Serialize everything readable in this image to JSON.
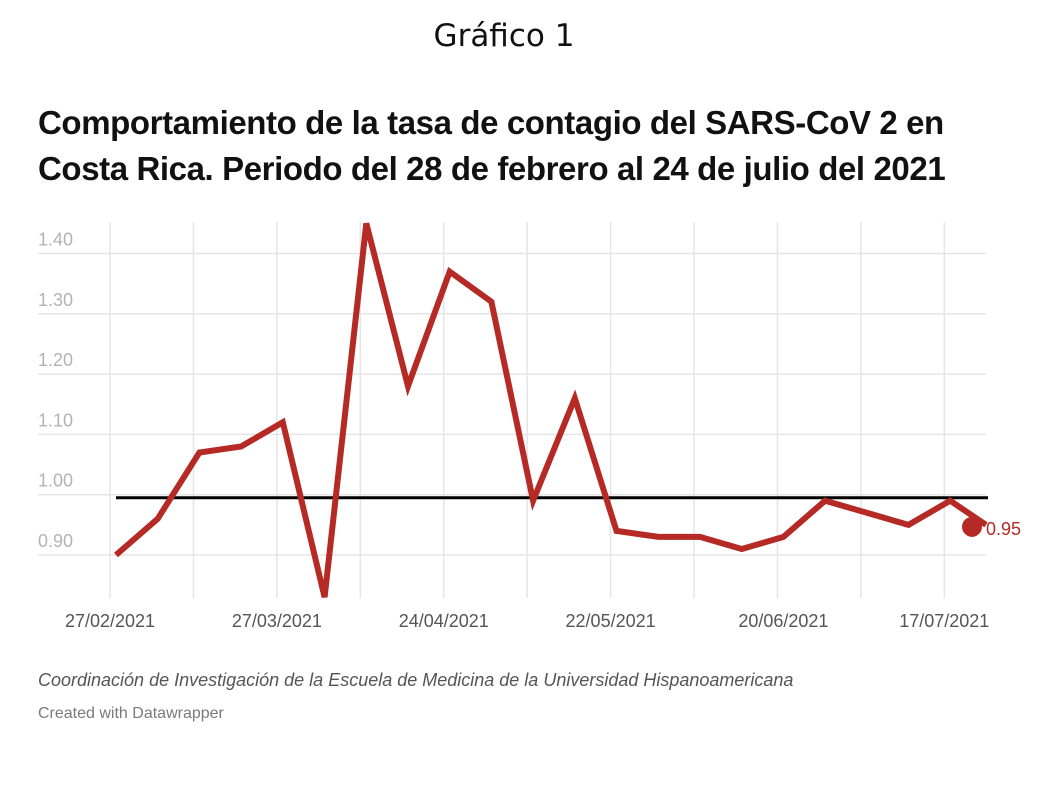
{
  "figure_label": "Gráfico 1",
  "source_note": "Coordinación de Investigación de la Escuela de Medicina de la Universidad Hispanoamericana",
  "credit": "Created with Datawrapper",
  "colors": {
    "series": "#b52a25",
    "reference_line": "#000000",
    "grid": "#e5e5e5",
    "y_tick_text": "#b3b3b3",
    "x_tick_text": "#555555"
  },
  "chart_data": {
    "type": "line",
    "title": "Comportamiento de la tasa de contagio del SARS-CoV 2 en Costa Rica. Periodo del 28 de febrero al 24 de julio del 2021",
    "xlabel": "",
    "ylabel": "",
    "x": [
      "2021-02-28",
      "2021-03-07",
      "2021-03-14",
      "2021-03-21",
      "2021-03-28",
      "2021-04-04",
      "2021-04-11",
      "2021-04-18",
      "2021-04-25",
      "2021-05-02",
      "2021-05-09",
      "2021-05-16",
      "2021-05-23",
      "2021-05-30",
      "2021-06-06",
      "2021-06-13",
      "2021-06-20",
      "2021-06-27",
      "2021-07-04",
      "2021-07-11",
      "2021-07-18",
      "2021-07-24"
    ],
    "series": [
      {
        "values": [
          0.9,
          0.96,
          1.07,
          1.08,
          1.12,
          0.83,
          1.45,
          1.18,
          1.37,
          1.32,
          0.99,
          1.16,
          0.94,
          0.93,
          0.93,
          0.91,
          0.93,
          0.99,
          0.97,
          0.95,
          0.99,
          0.95
        ]
      }
    ],
    "reference_line": {
      "y": 0.995
    },
    "end_label": "0.95",
    "ylim": [
      0.83,
      1.45
    ],
    "y_ticks": [
      0.9,
      1.0,
      1.1,
      1.2,
      1.3,
      1.4
    ],
    "y_tick_labels": [
      "0.90",
      "1.00",
      "1.10",
      "1.20",
      "1.30",
      "1.40"
    ],
    "x_tick_labels": [
      {
        "date": "2021-02-27",
        "label": "27/02/2021"
      },
      {
        "date": "2021-03-27",
        "label": "27/03/2021"
      },
      {
        "date": "2021-04-24",
        "label": "24/04/2021"
      },
      {
        "date": "2021-05-22",
        "label": "22/05/2021"
      },
      {
        "date": "2021-06-20",
        "label": "20/06/2021"
      },
      {
        "date": "2021-07-17",
        "label": "17/07/2021"
      }
    ],
    "grid": true
  }
}
